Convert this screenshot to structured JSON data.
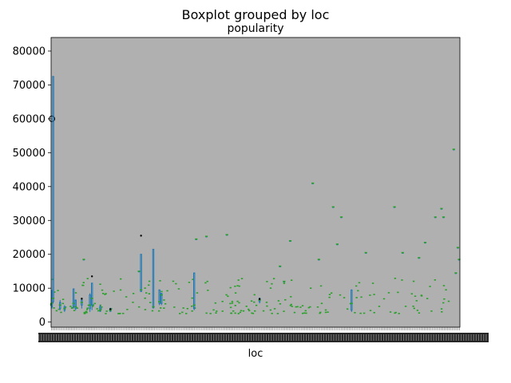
{
  "chart_data": {
    "type": "box",
    "title": "Boxplot grouped by loc",
    "subtitle": "popularity",
    "xlabel": "loc",
    "ylabel": "",
    "ylim": [
      -1500,
      84000
    ],
    "yticks": [
      0,
      10000,
      20000,
      30000,
      40000,
      50000,
      60000,
      70000,
      80000
    ],
    "ytick_labels": [
      "0",
      "10000",
      "20000",
      "30000",
      "40000",
      "50000",
      "60000",
      "70000",
      "80000"
    ],
    "xticks_note": "hundreds of overlapping category labels (illegible)",
    "grid": false,
    "legend": "none",
    "colors": {
      "plot_background": "#b0b0b0",
      "box": "#1f77b4",
      "median": "#2ca02c",
      "outlier": "#000000"
    },
    "boxes": [
      {
        "x": 0.002,
        "whislo": 4000,
        "q1": 4500,
        "med": 5600,
        "q3": 7000,
        "whishi": 9500,
        "fliers": [
          60000
        ]
      },
      {
        "x": 0.005,
        "whislo": 5500,
        "q1": 6000,
        "med": 7000,
        "q3": 72500,
        "whishi": 72500,
        "fliers": []
      },
      {
        "x": 0.022,
        "whislo": 3500,
        "q1": 4000,
        "med": 5000,
        "q3": 5800,
        "whishi": 6500,
        "fliers": []
      },
      {
        "x": 0.033,
        "whislo": 3000,
        "q1": 3500,
        "med": 4000,
        "q3": 4500,
        "whishi": 5000,
        "fliers": []
      },
      {
        "x": 0.055,
        "whislo": 4000,
        "q1": 4500,
        "med": 5500,
        "q3": 9800,
        "whishi": 9800,
        "fliers": []
      },
      {
        "x": 0.06,
        "whislo": 3500,
        "q1": 4000,
        "med": 4500,
        "q3": 6500,
        "whishi": 6500,
        "fliers": []
      },
      {
        "x": 0.075,
        "whislo": 4000,
        "q1": 5000,
        "med": 5800,
        "q3": 6500,
        "whishi": 7000,
        "fliers": [
          6900
        ]
      },
      {
        "x": 0.08,
        "whislo": 18500,
        "q1": 18500,
        "med": 18500,
        "q3": 18500,
        "whishi": 18500,
        "fliers": []
      },
      {
        "x": 0.095,
        "whislo": 3000,
        "q1": 4000,
        "med": 5000,
        "q3": 8000,
        "whishi": 8500,
        "fliers": []
      },
      {
        "x": 0.1,
        "whislo": 3500,
        "q1": 5000,
        "med": 7000,
        "q3": 11500,
        "whishi": 11500,
        "fliers": [
          13500
        ]
      },
      {
        "x": 0.12,
        "whislo": 3000,
        "q1": 3200,
        "med": 3500,
        "q3": 4500,
        "whishi": 5000,
        "fliers": []
      },
      {
        "x": 0.145,
        "whislo": 3000,
        "q1": 3200,
        "med": 3500,
        "q3": 4000,
        "whishi": 4200,
        "fliers": [
          3800
        ]
      },
      {
        "x": 0.22,
        "whislo": 9000,
        "q1": 9000,
        "med": 9500,
        "q3": 20000,
        "whishi": 20000,
        "fliers": [
          25500
        ]
      },
      {
        "x": 0.215,
        "whislo": 15000,
        "q1": 15000,
        "med": 15000,
        "q3": 15000,
        "whishi": 15000,
        "fliers": []
      },
      {
        "x": 0.25,
        "whislo": 4000,
        "q1": 4200,
        "med": 4500,
        "q3": 21500,
        "whishi": 21500,
        "fliers": []
      },
      {
        "x": 0.265,
        "whislo": 5000,
        "q1": 5500,
        "med": 6000,
        "q3": 9500,
        "whishi": 9500,
        "fliers": []
      },
      {
        "x": 0.27,
        "whislo": 5000,
        "q1": 5500,
        "med": 8000,
        "q3": 8500,
        "whishi": 8500,
        "fliers": []
      },
      {
        "x": 0.35,
        "whislo": 3500,
        "q1": 4000,
        "med": 5000,
        "q3": 14500,
        "whishi": 14500,
        "fliers": []
      },
      {
        "x": 0.355,
        "whislo": 24500,
        "q1": 24500,
        "med": 24500,
        "q3": 24500,
        "whishi": 24500,
        "fliers": []
      },
      {
        "x": 0.38,
        "whislo": 25300,
        "q1": 25300,
        "med": 25300,
        "q3": 25300,
        "whishi": 25300,
        "fliers": []
      },
      {
        "x": 0.43,
        "whislo": 25800,
        "q1": 25800,
        "med": 25800,
        "q3": 25800,
        "whishi": 25800,
        "fliers": []
      },
      {
        "x": 0.51,
        "whislo": 5500,
        "q1": 6000,
        "med": 6500,
        "q3": 7000,
        "whishi": 7200,
        "fliers": [
          6800
        ]
      },
      {
        "x": 0.56,
        "whislo": 16500,
        "q1": 16500,
        "med": 16500,
        "q3": 16500,
        "whishi": 16500,
        "fliers": []
      },
      {
        "x": 0.57,
        "whislo": 12000,
        "q1": 12000,
        "med": 12000,
        "q3": 12000,
        "whishi": 12000,
        "fliers": []
      },
      {
        "x": 0.585,
        "whislo": 24000,
        "q1": 24000,
        "med": 24000,
        "q3": 24000,
        "whishi": 24000,
        "fliers": []
      },
      {
        "x": 0.64,
        "whislo": 41000,
        "q1": 41000,
        "med": 41000,
        "q3": 41000,
        "whishi": 41000,
        "fliers": []
      },
      {
        "x": 0.655,
        "whislo": 18500,
        "q1": 18500,
        "med": 18500,
        "q3": 18500,
        "whishi": 18500,
        "fliers": []
      },
      {
        "x": 0.69,
        "whislo": 34000,
        "q1": 34000,
        "med": 34000,
        "q3": 34000,
        "whishi": 34000,
        "fliers": []
      },
      {
        "x": 0.7,
        "whislo": 23000,
        "q1": 23000,
        "med": 23000,
        "q3": 23000,
        "whishi": 23000,
        "fliers": []
      },
      {
        "x": 0.71,
        "whislo": 31000,
        "q1": 31000,
        "med": 31000,
        "q3": 31000,
        "whishi": 31000,
        "fliers": []
      },
      {
        "x": 0.735,
        "whislo": 3000,
        "q1": 3500,
        "med": 5500,
        "q3": 9500,
        "whishi": 9500,
        "fliers": []
      },
      {
        "x": 0.77,
        "whislo": 20500,
        "q1": 20500,
        "med": 20500,
        "q3": 20500,
        "whishi": 20500,
        "fliers": []
      },
      {
        "x": 0.84,
        "whislo": 34000,
        "q1": 34000,
        "med": 34000,
        "q3": 34000,
        "whishi": 34000,
        "fliers": []
      },
      {
        "x": 0.86,
        "whislo": 20500,
        "q1": 20500,
        "med": 20500,
        "q3": 20500,
        "whishi": 20500,
        "fliers": []
      },
      {
        "x": 0.9,
        "whislo": 19000,
        "q1": 19000,
        "med": 19000,
        "q3": 19000,
        "whishi": 19000,
        "fliers": []
      },
      {
        "x": 0.915,
        "whislo": 23500,
        "q1": 23500,
        "med": 23500,
        "q3": 23500,
        "whishi": 23500,
        "fliers": []
      },
      {
        "x": 0.94,
        "whislo": 31000,
        "q1": 31000,
        "med": 31000,
        "q3": 31000,
        "whishi": 31000,
        "fliers": []
      },
      {
        "x": 0.955,
        "whislo": 33500,
        "q1": 33500,
        "med": 33500,
        "q3": 33500,
        "whishi": 33500,
        "fliers": []
      },
      {
        "x": 0.96,
        "whislo": 31000,
        "q1": 31000,
        "med": 31000,
        "q3": 31000,
        "whishi": 31000,
        "fliers": []
      },
      {
        "x": 0.985,
        "whislo": 51000,
        "q1": 51000,
        "med": 51000,
        "q3": 51000,
        "whishi": 51000,
        "fliers": []
      },
      {
        "x": 0.99,
        "whislo": 14500,
        "q1": 14500,
        "med": 14500,
        "q3": 14500,
        "whishi": 14500,
        "fliers": []
      },
      {
        "x": 0.995,
        "whislo": 22000,
        "q1": 22000,
        "med": 22000,
        "q3": 22000,
        "whishi": 22000,
        "fliers": []
      },
      {
        "x": 0.998,
        "whislo": 18500,
        "q1": 18500,
        "med": 18500,
        "q3": 18500,
        "whishi": 18500,
        "fliers": []
      }
    ],
    "median_points_note": "hundreds of single-value green median markers concentrated between 2500 and 12000"
  }
}
